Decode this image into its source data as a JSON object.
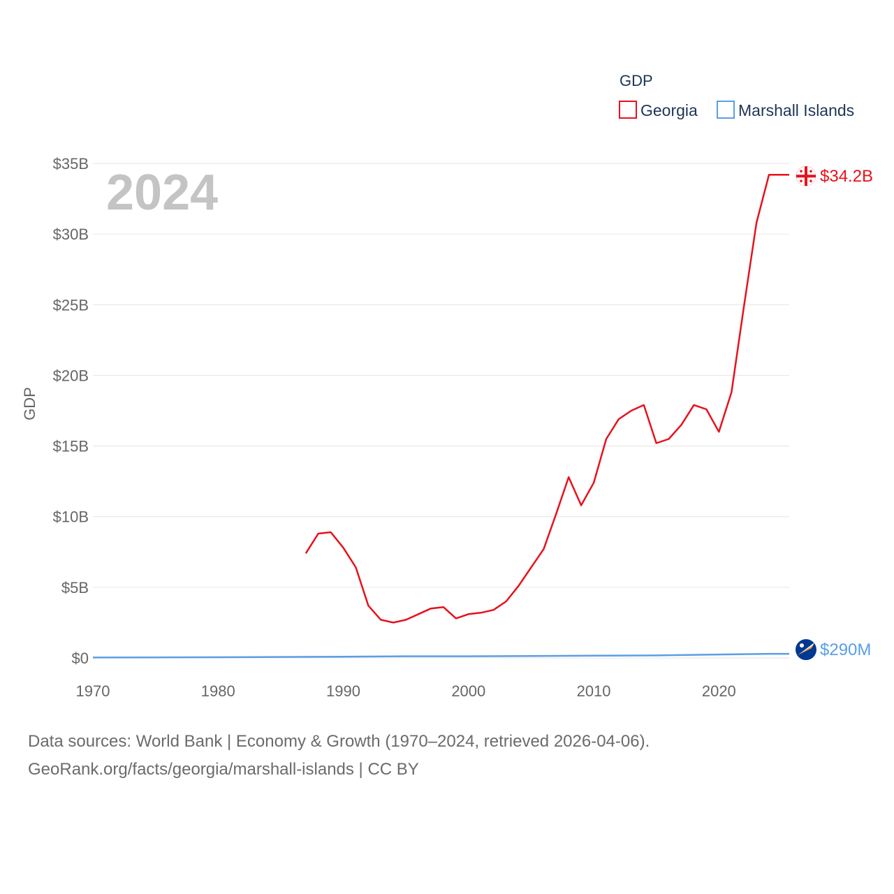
{
  "chart_data": {
    "type": "line",
    "title": "",
    "year_label": "2024",
    "xlabel": "",
    "ylabel": "GDP",
    "xlim": [
      1970,
      2024
    ],
    "ylim": [
      0,
      35
    ],
    "x_ticks": [
      1970,
      1980,
      1990,
      2000,
      2010,
      2020
    ],
    "x_tick_labels": [
      "1970",
      "1980",
      "1990",
      "2000",
      "2010",
      "2020"
    ],
    "y_ticks": [
      0,
      5,
      10,
      15,
      20,
      25,
      30,
      35
    ],
    "y_tick_labels": [
      "$0",
      "$5B",
      "$10B",
      "$15B",
      "$20B",
      "$25B",
      "$30B",
      "$35B"
    ],
    "grid": true,
    "legend": {
      "title": "GDP",
      "placement": "top-right",
      "entries": [
        "Georgia",
        "Marshall Islands"
      ]
    },
    "series": [
      {
        "name": "Georgia",
        "color": "#e8111c",
        "end_label": "$34.2B",
        "icon": "georgia-flag-icon",
        "x": [
          1987,
          1988,
          1989,
          1990,
          1991,
          1992,
          1993,
          1994,
          1995,
          1996,
          1997,
          1998,
          1999,
          2000,
          2001,
          2002,
          2003,
          2004,
          2005,
          2006,
          2007,
          2008,
          2009,
          2010,
          2011,
          2012,
          2013,
          2014,
          2015,
          2016,
          2017,
          2018,
          2019,
          2020,
          2021,
          2022,
          2023,
          2024
        ],
        "values": [
          7.4,
          8.8,
          8.9,
          7.8,
          6.4,
          3.7,
          2.7,
          2.5,
          2.7,
          3.1,
          3.5,
          3.6,
          2.8,
          3.1,
          3.2,
          3.4,
          4.0,
          5.1,
          6.4,
          7.7,
          10.2,
          12.8,
          10.8,
          12.4,
          15.5,
          16.9,
          17.5,
          17.9,
          15.2,
          15.5,
          16.5,
          17.9,
          17.6,
          16.0,
          18.8,
          24.9,
          30.8,
          34.2
        ]
      },
      {
        "name": "Marshall Islands",
        "color": "#5a9ee6",
        "end_label": "$290M",
        "icon": "marshall-islands-flag-icon",
        "x": [
          1970,
          1975,
          1980,
          1985,
          1990,
          1995,
          2000,
          2005,
          2010,
          2015,
          2020,
          2024
        ],
        "values": [
          0.03,
          0.04,
          0.05,
          0.07,
          0.09,
          0.12,
          0.12,
          0.14,
          0.16,
          0.18,
          0.24,
          0.29
        ]
      }
    ]
  },
  "footer": {
    "line1": "Data sources: World Bank | Economy & Growth (1970–2024, retrieved 2026-04-06).",
    "line2": "GeoRank.org/facts/georgia/marshall-islands | CC BY"
  }
}
